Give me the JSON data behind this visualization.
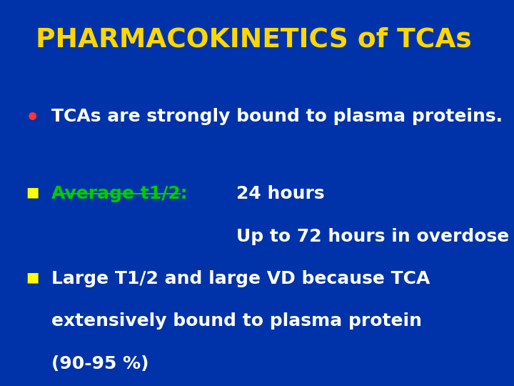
{
  "title": "PHARMACOKINETICS of TCAs",
  "title_color": "#FFD700",
  "bg_color": "#0033AA",
  "bullet_color": "#FF3333",
  "bullet_text": "TCAs are strongly bound to plasma proteins.",
  "bullet_text_color": "#FFFFFF",
  "square_bullet_color": "#FFFF00",
  "n_item1_label": "Average t1/2:",
  "n_item1_label_color": "#00CC00",
  "n_item1_text1": "24 hours",
  "n_item1_text2": "Up to 72 hours in overdose",
  "n_item1_color": "#FFFFFF",
  "n_item2_line1": "Large T1/2 and large VD because TCA",
  "n_item2_line2": "extensively bound to plasma protein",
  "n_item2_line3": "(90-95 %)",
  "n_item2_color": "#FFFFFF",
  "figsize": [
    7.2,
    5.4
  ],
  "dpi": 100
}
